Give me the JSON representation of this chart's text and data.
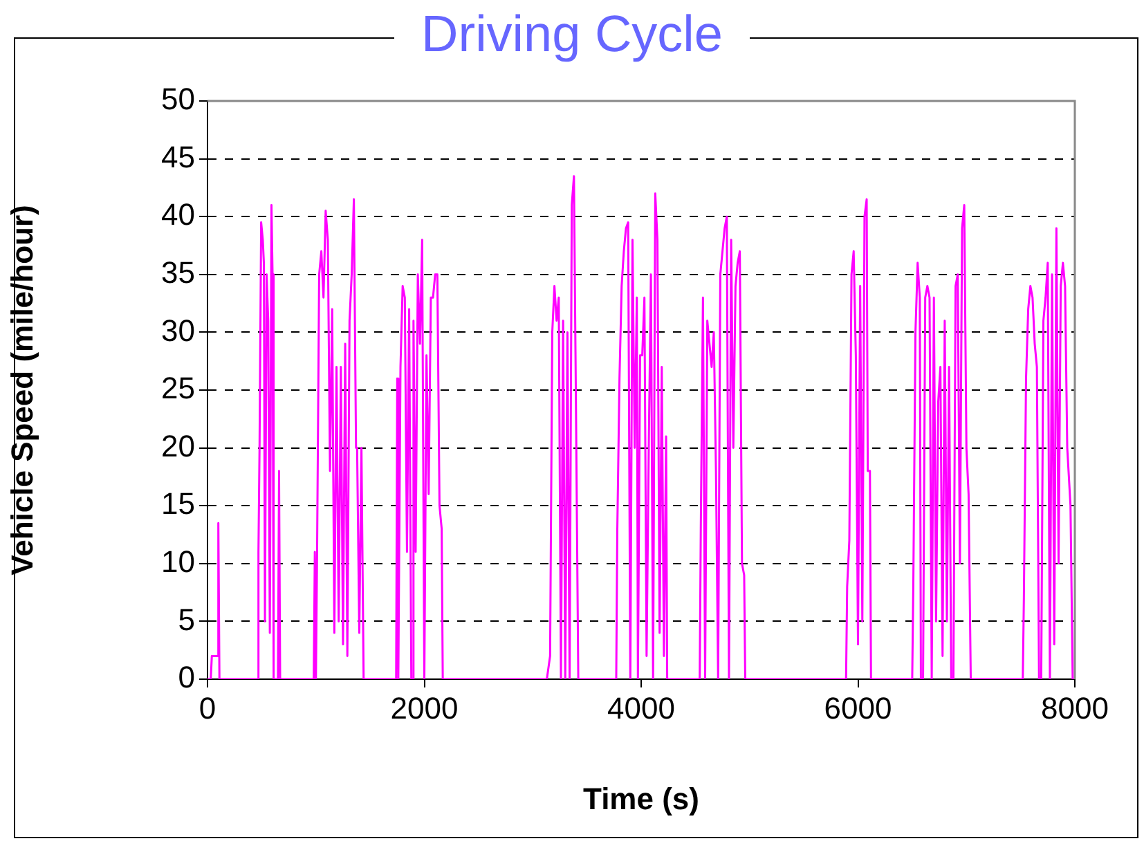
{
  "chart_data": {
    "type": "line",
    "title": "Driving Cycle",
    "xlabel": "Time (s)",
    "ylabel": "Vehicle Speed (mile/hour)",
    "xlim": [
      0,
      8000
    ],
    "xticks": [
      0,
      2000,
      4000,
      6000,
      8000
    ],
    "ylim": [
      0,
      50
    ],
    "yticks": [
      0,
      5,
      10,
      15,
      20,
      25,
      30,
      35,
      40,
      45,
      50
    ],
    "grid": "y",
    "legend": false,
    "marker": "none",
    "line_style": "solid",
    "series": [
      {
        "color": "#ff00ff",
        "x": [
          0,
          30,
          40,
          90,
          100,
          110,
          460,
          470,
          480,
          495,
          510,
          520,
          530,
          545,
          560,
          575,
          590,
          600,
          610,
          650,
          660,
          670,
          980,
          990,
          1000,
          1010,
          1030,
          1050,
          1070,
          1090,
          1110,
          1130,
          1150,
          1170,
          1190,
          1210,
          1230,
          1250,
          1270,
          1290,
          1310,
          1330,
          1350,
          1370,
          1380,
          1400,
          1420,
          1440,
          1740,
          1750,
          1760,
          1780,
          1800,
          1820,
          1840,
          1860,
          1880,
          1890,
          1900,
          1920,
          1940,
          1960,
          1980,
          2000,
          2020,
          2040,
          2060,
          2080,
          2100,
          2120,
          2140,
          2160,
          2170,
          3130,
          3160,
          3180,
          3200,
          3220,
          3240,
          3260,
          3280,
          3300,
          3320,
          3340,
          3360,
          3380,
          3400,
          3420,
          3460,
          3770,
          3780,
          3800,
          3820,
          3840,
          3860,
          3880,
          3900,
          3920,
          3940,
          3960,
          3970,
          3990,
          4010,
          4030,
          4050,
          4070,
          4090,
          4110,
          4130,
          4150,
          4170,
          4190,
          4210,
          4230,
          4240,
          4540,
          4550,
          4570,
          4590,
          4610,
          4630,
          4650,
          4670,
          4690,
          4710,
          4730,
          4750,
          4770,
          4790,
          4810,
          4830,
          4850,
          4870,
          4890,
          4910,
          4930,
          4950,
          4960,
          5890,
          5900,
          5920,
          5940,
          5960,
          5980,
          6000,
          6020,
          6040,
          6060,
          6080,
          6090,
          6110,
          6120,
          6500,
          6510,
          6530,
          6550,
          6570,
          6580,
          6600,
          6620,
          6640,
          6660,
          6680,
          6700,
          6720,
          6740,
          6760,
          6780,
          6800,
          6820,
          6840,
          6860,
          6880,
          6900,
          6920,
          6940,
          6960,
          6980,
          7000,
          7020,
          7040,
          7520,
          7530,
          7550,
          7570,
          7590,
          7610,
          7630,
          7650,
          7670,
          7690,
          7710,
          7730,
          7750,
          7770,
          7790,
          7810,
          7830,
          7850,
          7870,
          7890,
          7910,
          7930,
          7960,
          7980,
          8000
        ],
        "values": [
          0,
          0,
          2,
          2,
          13.5,
          0,
          0,
          11,
          20,
          39.5,
          38,
          36,
          5,
          35,
          31,
          4,
          41,
          35,
          0,
          0,
          18,
          0,
          0,
          11,
          0,
          10,
          35,
          37,
          33,
          40.5,
          38,
          18,
          32,
          4,
          27,
          5,
          27,
          3,
          29,
          2,
          31,
          35,
          41.5,
          20,
          20,
          4,
          20,
          0,
          0,
          26,
          0,
          27,
          34,
          33,
          11,
          32,
          0,
          0,
          31,
          11,
          35,
          29,
          38,
          0,
          28,
          16,
          33,
          33,
          35,
          35,
          15,
          13,
          0,
          0,
          2,
          30,
          34,
          31,
          33,
          0,
          31,
          0,
          30,
          0,
          41,
          43.5,
          22,
          0,
          0,
          0,
          13,
          26,
          34,
          37,
          39,
          39.5,
          0,
          38,
          20,
          33,
          0,
          28,
          28,
          33,
          2,
          20,
          35,
          0,
          42,
          38,
          4,
          27,
          2,
          21,
          0,
          0,
          13,
          33,
          0,
          31,
          29,
          27,
          30,
          18,
          0,
          35,
          37,
          39,
          40,
          0,
          38,
          20,
          34,
          36,
          37,
          10,
          9,
          0,
          0,
          8,
          12,
          35,
          37,
          28,
          3,
          34,
          5,
          40,
          41.5,
          18,
          18,
          0,
          0,
          8,
          30,
          36,
          33,
          0,
          0,
          33,
          34,
          33,
          0,
          33,
          5,
          24,
          27,
          2,
          31,
          5,
          27,
          0,
          0,
          34,
          35,
          10,
          39,
          41,
          20,
          16,
          0,
          0,
          7,
          26,
          32,
          34,
          33,
          29,
          27,
          0,
          0,
          31,
          33,
          36,
          0,
          35,
          3,
          39,
          10,
          34,
          36,
          34,
          20,
          15,
          0,
          0
        ]
      }
    ]
  }
}
